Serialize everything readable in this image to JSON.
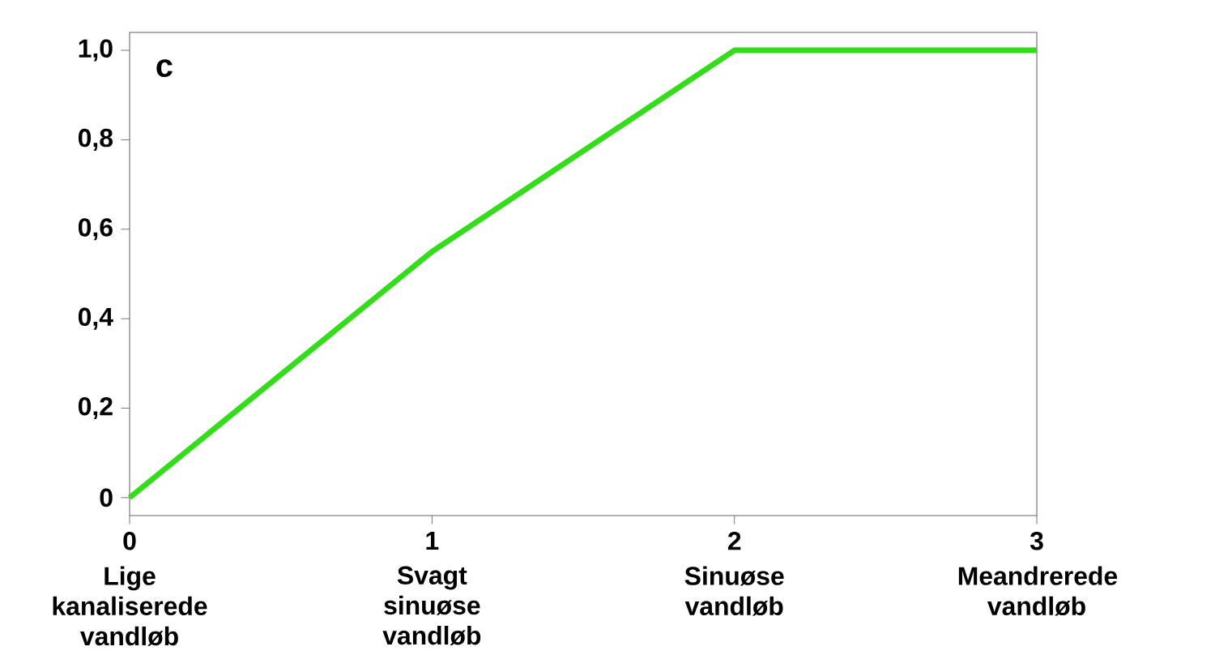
{
  "chart_data": {
    "type": "line",
    "title": "c",
    "x": [
      0,
      1,
      2,
      3
    ],
    "series": [
      {
        "color": "#33dd1a",
        "values": [
          0,
          0.55,
          1.0,
          1.0
        ]
      }
    ],
    "xlim": [
      0,
      3
    ],
    "ylim": [
      -0.04,
      1.04
    ],
    "xticks": [
      0,
      1,
      2,
      3
    ],
    "yticks": [
      0,
      {
        "value": 0.2,
        "label": "0,2"
      },
      {
        "value": 0.4,
        "label": "0,4"
      },
      {
        "value": 0.6,
        "label": "0,6"
      },
      {
        "value": 0.8,
        "label": "0,8"
      },
      {
        "value": 1.0,
        "label": "1,0"
      }
    ],
    "annotations": [
      "Lige kanaliserede vandløb",
      "Svagt sinuøse vandløb",
      "Sinuøse vandløb",
      "Meandrerede vandløb"
    ],
    "grid": false,
    "marker": "none",
    "line_style": "solid"
  }
}
